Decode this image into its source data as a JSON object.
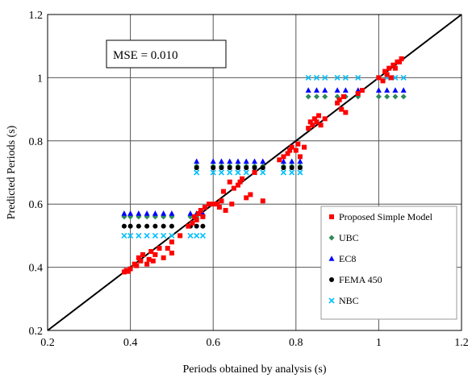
{
  "chart_data": {
    "type": "scatter",
    "title": "",
    "xlabel": "Periods obtained by analysis (s)",
    "ylabel": "Predicted Periods (s)",
    "xlim": [
      0.2,
      1.2
    ],
    "ylim": [
      0.2,
      1.2
    ],
    "x_ticks": [
      "0.2",
      "0.4",
      "0.6",
      "0.8",
      "1",
      "1.2"
    ],
    "y_ticks": [
      "0.2",
      "0.4",
      "0.6",
      "0.8",
      "1",
      "1.2"
    ],
    "grid": true,
    "legend_position": "bottom-right",
    "annotation": "MSE = 0.010",
    "reference_line": {
      "from": [
        0.2,
        0.2
      ],
      "to": [
        1.2,
        1.2
      ],
      "color": "#000000"
    },
    "series": [
      {
        "name": "Proposed Simple Model",
        "marker": "square",
        "color": "#ff0000",
        "points": [
          [
            0.385,
            0.385
          ],
          [
            0.39,
            0.39
          ],
          [
            0.395,
            0.387
          ],
          [
            0.4,
            0.395
          ],
          [
            0.41,
            0.41
          ],
          [
            0.415,
            0.405
          ],
          [
            0.42,
            0.43
          ],
          [
            0.425,
            0.42
          ],
          [
            0.43,
            0.44
          ],
          [
            0.44,
            0.41
          ],
          [
            0.445,
            0.425
          ],
          [
            0.45,
            0.45
          ],
          [
            0.455,
            0.42
          ],
          [
            0.46,
            0.44
          ],
          [
            0.47,
            0.46
          ],
          [
            0.48,
            0.43
          ],
          [
            0.49,
            0.46
          ],
          [
            0.5,
            0.48
          ],
          [
            0.5,
            0.445
          ],
          [
            0.52,
            0.5
          ],
          [
            0.54,
            0.53
          ],
          [
            0.55,
            0.54
          ],
          [
            0.555,
            0.56
          ],
          [
            0.56,
            0.55
          ],
          [
            0.565,
            0.57
          ],
          [
            0.57,
            0.58
          ],
          [
            0.575,
            0.56
          ],
          [
            0.58,
            0.59
          ],
          [
            0.59,
            0.6
          ],
          [
            0.6,
            0.6
          ],
          [
            0.61,
            0.6
          ],
          [
            0.615,
            0.59
          ],
          [
            0.62,
            0.61
          ],
          [
            0.625,
            0.64
          ],
          [
            0.63,
            0.58
          ],
          [
            0.64,
            0.67
          ],
          [
            0.645,
            0.6
          ],
          [
            0.65,
            0.65
          ],
          [
            0.66,
            0.66
          ],
          [
            0.665,
            0.67
          ],
          [
            0.67,
            0.68
          ],
          [
            0.68,
            0.62
          ],
          [
            0.69,
            0.63
          ],
          [
            0.7,
            0.7
          ],
          [
            0.72,
            0.61
          ],
          [
            0.76,
            0.74
          ],
          [
            0.77,
            0.75
          ],
          [
            0.78,
            0.76
          ],
          [
            0.785,
            0.77
          ],
          [
            0.79,
            0.78
          ],
          [
            0.8,
            0.77
          ],
          [
            0.805,
            0.79
          ],
          [
            0.81,
            0.75
          ],
          [
            0.82,
            0.78
          ],
          [
            0.83,
            0.84
          ],
          [
            0.835,
            0.86
          ],
          [
            0.84,
            0.85
          ],
          [
            0.845,
            0.87
          ],
          [
            0.85,
            0.86
          ],
          [
            0.855,
            0.88
          ],
          [
            0.86,
            0.85
          ],
          [
            0.87,
            0.87
          ],
          [
            0.9,
            0.92
          ],
          [
            0.905,
            0.93
          ],
          [
            0.91,
            0.9
          ],
          [
            0.915,
            0.94
          ],
          [
            0.92,
            0.89
          ],
          [
            0.95,
            0.95
          ],
          [
            0.96,
            0.96
          ],
          [
            1.0,
            1.0
          ],
          [
            1.01,
            0.99
          ],
          [
            1.015,
            1.02
          ],
          [
            1.02,
            1.01
          ],
          [
            1.025,
            1.03
          ],
          [
            1.03,
            1.0
          ],
          [
            1.035,
            1.04
          ],
          [
            1.04,
            1.03
          ],
          [
            1.045,
            1.05
          ],
          [
            1.05,
            1.05
          ],
          [
            1.055,
            1.06
          ]
        ]
      },
      {
        "name": "UBC",
        "marker": "diamond",
        "color": "#2e8b57",
        "y_levels": [
          0.56,
          0.72,
          0.94
        ],
        "points": [
          [
            0.385,
            0.56
          ],
          [
            0.4,
            0.56
          ],
          [
            0.42,
            0.56
          ],
          [
            0.44,
            0.56
          ],
          [
            0.46,
            0.56
          ],
          [
            0.48,
            0.56
          ],
          [
            0.5,
            0.56
          ],
          [
            0.545,
            0.56
          ],
          [
            0.56,
            0.56
          ],
          [
            0.575,
            0.56
          ],
          [
            0.56,
            0.72
          ],
          [
            0.6,
            0.72
          ],
          [
            0.62,
            0.72
          ],
          [
            0.64,
            0.72
          ],
          [
            0.66,
            0.72
          ],
          [
            0.68,
            0.72
          ],
          [
            0.7,
            0.72
          ],
          [
            0.72,
            0.72
          ],
          [
            0.77,
            0.72
          ],
          [
            0.79,
            0.72
          ],
          [
            0.81,
            0.72
          ],
          [
            0.83,
            0.94
          ],
          [
            0.85,
            0.94
          ],
          [
            0.87,
            0.94
          ],
          [
            0.9,
            0.94
          ],
          [
            0.92,
            0.94
          ],
          [
            0.95,
            0.94
          ],
          [
            1.0,
            0.94
          ],
          [
            1.02,
            0.94
          ],
          [
            1.04,
            0.94
          ],
          [
            1.06,
            0.94
          ]
        ]
      },
      {
        "name": "EC8",
        "marker": "triangle",
        "color": "#0000ff",
        "y_levels": [
          0.57,
          0.735,
          0.96
        ],
        "points": [
          [
            0.385,
            0.57
          ],
          [
            0.4,
            0.57
          ],
          [
            0.42,
            0.57
          ],
          [
            0.44,
            0.57
          ],
          [
            0.46,
            0.57
          ],
          [
            0.48,
            0.57
          ],
          [
            0.5,
            0.57
          ],
          [
            0.545,
            0.57
          ],
          [
            0.56,
            0.57
          ],
          [
            0.575,
            0.57
          ],
          [
            0.56,
            0.735
          ],
          [
            0.6,
            0.735
          ],
          [
            0.62,
            0.735
          ],
          [
            0.64,
            0.735
          ],
          [
            0.66,
            0.735
          ],
          [
            0.68,
            0.735
          ],
          [
            0.7,
            0.735
          ],
          [
            0.72,
            0.735
          ],
          [
            0.77,
            0.735
          ],
          [
            0.79,
            0.735
          ],
          [
            0.81,
            0.735
          ],
          [
            0.83,
            0.96
          ],
          [
            0.85,
            0.96
          ],
          [
            0.87,
            0.96
          ],
          [
            0.9,
            0.96
          ],
          [
            0.92,
            0.96
          ],
          [
            0.95,
            0.96
          ],
          [
            1.0,
            0.96
          ],
          [
            1.02,
            0.96
          ],
          [
            1.04,
            0.96
          ],
          [
            1.06,
            0.96
          ]
        ]
      },
      {
        "name": "FEMA 450",
        "marker": "circle",
        "color": "#000000",
        "y_levels": [
          0.53,
          0.715
        ],
        "points": [
          [
            0.385,
            0.53
          ],
          [
            0.4,
            0.53
          ],
          [
            0.42,
            0.53
          ],
          [
            0.44,
            0.53
          ],
          [
            0.46,
            0.53
          ],
          [
            0.48,
            0.53
          ],
          [
            0.5,
            0.53
          ],
          [
            0.545,
            0.53
          ],
          [
            0.56,
            0.53
          ],
          [
            0.575,
            0.53
          ],
          [
            0.56,
            0.715
          ],
          [
            0.6,
            0.715
          ],
          [
            0.62,
            0.715
          ],
          [
            0.64,
            0.715
          ],
          [
            0.66,
            0.715
          ],
          [
            0.68,
            0.715
          ],
          [
            0.7,
            0.715
          ],
          [
            0.72,
            0.715
          ],
          [
            0.77,
            0.715
          ],
          [
            0.79,
            0.715
          ],
          [
            0.81,
            0.715
          ]
        ]
      },
      {
        "name": "NBC",
        "marker": "x",
        "color": "#00bfff",
        "y_levels": [
          0.5,
          0.7,
          1.0
        ],
        "points": [
          [
            0.385,
            0.5
          ],
          [
            0.4,
            0.5
          ],
          [
            0.42,
            0.5
          ],
          [
            0.44,
            0.5
          ],
          [
            0.46,
            0.5
          ],
          [
            0.48,
            0.5
          ],
          [
            0.5,
            0.5
          ],
          [
            0.545,
            0.5
          ],
          [
            0.56,
            0.5
          ],
          [
            0.575,
            0.5
          ],
          [
            0.56,
            0.7
          ],
          [
            0.6,
            0.7
          ],
          [
            0.62,
            0.7
          ],
          [
            0.64,
            0.7
          ],
          [
            0.66,
            0.7
          ],
          [
            0.68,
            0.7
          ],
          [
            0.7,
            0.7
          ],
          [
            0.72,
            0.7
          ],
          [
            0.77,
            0.7
          ],
          [
            0.79,
            0.7
          ],
          [
            0.81,
            0.7
          ],
          [
            0.83,
            1.0
          ],
          [
            0.85,
            1.0
          ],
          [
            0.87,
            1.0
          ],
          [
            0.9,
            1.0
          ],
          [
            0.92,
            1.0
          ],
          [
            0.95,
            1.0
          ],
          [
            1.0,
            1.0
          ],
          [
            1.02,
            1.0
          ],
          [
            1.04,
            1.0
          ],
          [
            1.06,
            1.0
          ]
        ]
      }
    ]
  }
}
